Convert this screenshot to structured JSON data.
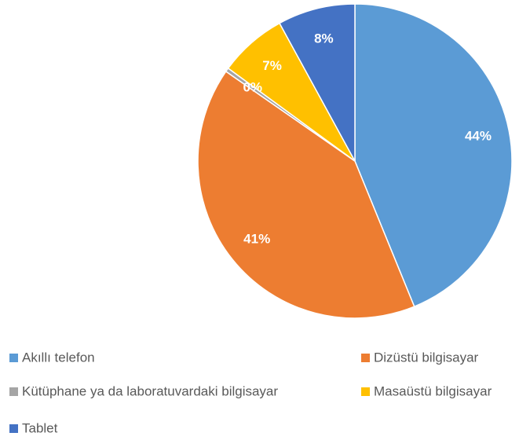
{
  "chart_data": {
    "type": "pie",
    "categories": [
      "Akıllı telefon",
      "Dizüstü bilgisayar",
      "Kütüphane ya da laboratuvardaki bilgisayar",
      "Masaüstü bilgisayar",
      "Tablet"
    ],
    "values": [
      44,
      41,
      0.4,
      7,
      8
    ],
    "value_labels": [
      "44%",
      "41%",
      "0%",
      "7%",
      "8%"
    ],
    "colors": [
      "#5b9bd5",
      "#ed7d31",
      "#a5a5a5",
      "#ffc000",
      "#4472c4"
    ],
    "legend": "bottom"
  }
}
